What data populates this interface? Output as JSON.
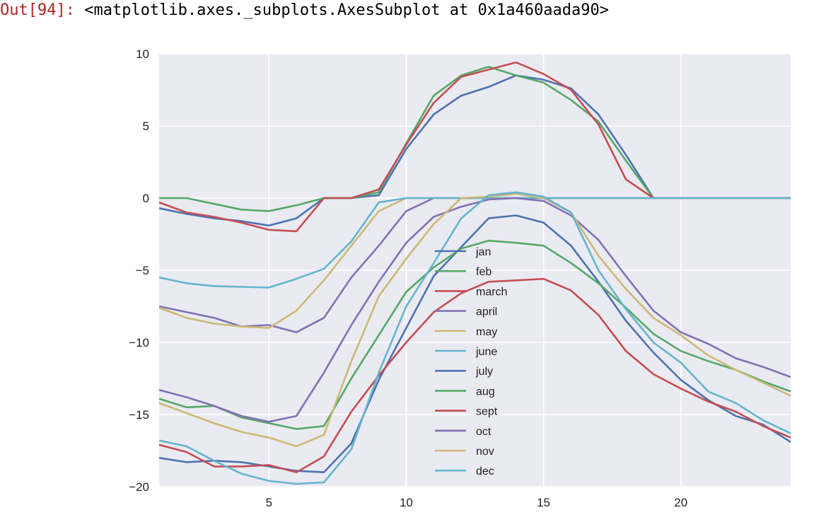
{
  "cell": {
    "prompt": "Out[94]:",
    "repr": "<matplotlib.axes._subplots.AxesSubplot at 0x1a460aada90>"
  },
  "chart_data": {
    "type": "line",
    "style": "seaborn-darkgrid",
    "background": "#eaeaf2",
    "grid": true,
    "legend_position": "center",
    "xlim": [
      1,
      24
    ],
    "ylim": [
      -20,
      10
    ],
    "xticks": [
      5,
      10,
      15,
      20
    ],
    "yticks": [
      10,
      5,
      0,
      -5,
      -10,
      -15,
      -20
    ],
    "x": [
      1,
      2,
      3,
      4,
      5,
      6,
      7,
      8,
      9,
      10,
      11,
      12,
      13,
      14,
      15,
      16,
      17,
      18,
      19,
      20,
      21,
      22,
      23,
      24
    ],
    "series": [
      {
        "name": "jan",
        "color": "#4c72b0",
        "values": [
          -0.7,
          -1.1,
          -1.4,
          -1.6,
          -1.9,
          -1.4,
          0,
          0,
          0.2,
          3.4,
          5.8,
          7.1,
          7.7,
          8.5,
          8.2,
          7.6,
          5.8,
          3,
          0,
          0,
          0,
          0,
          0,
          0
        ]
      },
      {
        "name": "feb",
        "color": "#55a868",
        "values": [
          0,
          0,
          -0.4,
          -0.8,
          -0.9,
          -0.5,
          0,
          0,
          0.4,
          3.8,
          7.1,
          8.5,
          9.1,
          8.5,
          8,
          6.8,
          5.3,
          2.6,
          0,
          0,
          0,
          0,
          0,
          0
        ]
      },
      {
        "name": "march",
        "color": "#c44e52",
        "values": [
          -0.3,
          -1,
          -1.3,
          -1.7,
          -2.2,
          -2.3,
          0,
          0,
          0.6,
          3.7,
          6.6,
          8.4,
          8.9,
          9.4,
          8.6,
          7.5,
          5.1,
          1.3,
          0,
          0,
          0,
          0,
          0,
          0
        ]
      },
      {
        "name": "april",
        "color": "#8172b2",
        "values": [
          -7.5,
          -7.9,
          -8.3,
          -8.9,
          -8.8,
          -9.3,
          -8.3,
          -5.5,
          -3.3,
          -0.9,
          0,
          0,
          0,
          0,
          0,
          0,
          0,
          0,
          0,
          0,
          0,
          0,
          0,
          0
        ]
      },
      {
        "name": "may",
        "color": "#ccb974",
        "values": [
          -7.6,
          -8.3,
          -8.7,
          -8.9,
          -9,
          -7.8,
          -5.7,
          -3.3,
          -0.9,
          0,
          0,
          0,
          0,
          0,
          0,
          0,
          0,
          0,
          0,
          0,
          0,
          0,
          0,
          0
        ]
      },
      {
        "name": "june",
        "color": "#64b5cd",
        "values": [
          -5.5,
          -5.9,
          -6.1,
          -6.15,
          -6.2,
          -5.6,
          -4.9,
          -3,
          -0.3,
          0,
          0,
          0,
          0,
          0,
          0,
          0,
          0,
          0,
          0,
          0,
          0,
          0,
          0,
          0
        ]
      },
      {
        "name": "july",
        "color": "#4c72b0",
        "values": [
          -18,
          -18.3,
          -18.2,
          -18.3,
          -18.6,
          -18.9,
          -19,
          -17,
          -12.6,
          -9,
          -5.4,
          -3.4,
          -1.4,
          -1.2,
          -1.7,
          -3.3,
          -5.8,
          -8.5,
          -10.7,
          -12.6,
          -14,
          -15.1,
          -15.7,
          -16.9
        ]
      },
      {
        "name": "aug",
        "color": "#55a868",
        "values": [
          -13.9,
          -14.5,
          -14.4,
          -15.2,
          -15.6,
          -16,
          -15.8,
          -12.5,
          -9.5,
          -6.5,
          -4.8,
          -3.5,
          -2.95,
          -3.1,
          -3.3,
          -4.5,
          -5.9,
          -7.6,
          -9.4,
          -10.6,
          -11.3,
          -11.9,
          -12.7,
          -13.4
        ]
      },
      {
        "name": "sept",
        "color": "#c44e52",
        "values": [
          -17.1,
          -17.6,
          -18.6,
          -18.6,
          -18.5,
          -19,
          -17.9,
          -14.8,
          -12.3,
          -10,
          -7.9,
          -6.6,
          -5.8,
          -5.7,
          -5.6,
          -6.4,
          -8.1,
          -10.6,
          -12.2,
          -13.2,
          -14.1,
          -14.8,
          -15.8,
          -16.6
        ]
      },
      {
        "name": "oct",
        "color": "#8172b2",
        "values": [
          -13.3,
          -13.8,
          -14.4,
          -15.1,
          -15.5,
          -15.1,
          -12.1,
          -8.8,
          -5.8,
          -3.1,
          -1.3,
          -0.6,
          -0.1,
          0,
          -0.2,
          -1.2,
          -2.9,
          -5.4,
          -7.8,
          -9.3,
          -10.1,
          -11.1,
          -11.7,
          -12.4
        ]
      },
      {
        "name": "nov",
        "color": "#ccb974",
        "values": [
          -14.2,
          -14.9,
          -15.6,
          -16.2,
          -16.6,
          -17.2,
          -16.4,
          -11.3,
          -6.8,
          -4.2,
          -1.8,
          0,
          0.1,
          0.3,
          0,
          -1,
          -4,
          -6.3,
          -8.3,
          -9.5,
          -10.9,
          -11.9,
          -12.8,
          -13.7
        ]
      },
      {
        "name": "dec",
        "color": "#64b5cd",
        "values": [
          -16.8,
          -17.2,
          -18.2,
          -19.1,
          -19.6,
          -19.8,
          -19.7,
          -17.4,
          -12.1,
          -7.5,
          -4.5,
          -1.4,
          0.2,
          0.4,
          0.1,
          -1,
          -5,
          -7.7,
          -10,
          -11.4,
          -13.4,
          -14.2,
          -15.4,
          -16.3
        ]
      }
    ]
  }
}
